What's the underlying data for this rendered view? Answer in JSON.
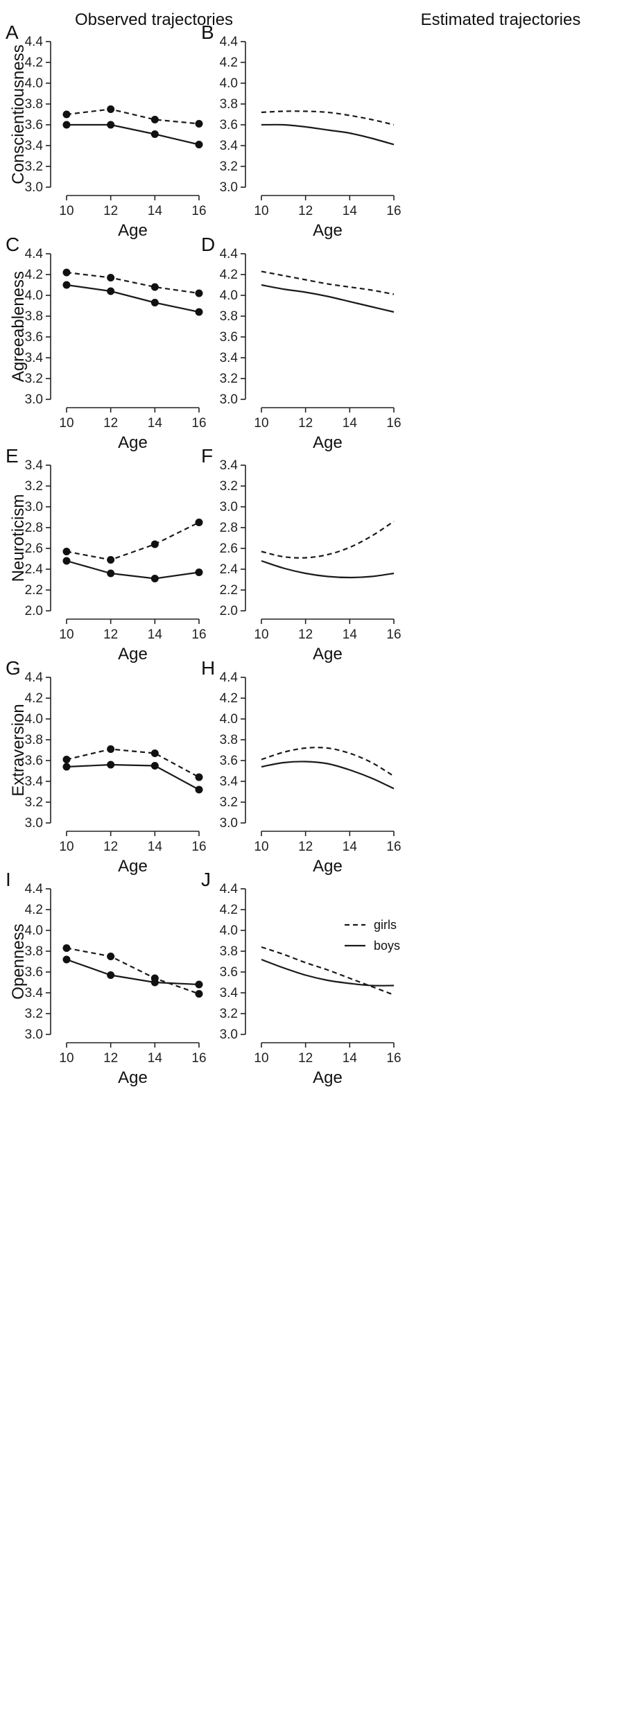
{
  "column_titles": [
    "Observed trajectories",
    "Estimated trajectories"
  ],
  "legend": {
    "girls": "girls",
    "boys": "boys"
  },
  "chart_data": [
    {
      "panel": "A",
      "type": "line",
      "variant": "observed",
      "ylabel": "Conscientiousness",
      "xlabel": "Age",
      "x": [
        10,
        12,
        14,
        16
      ],
      "xticks": [
        10,
        12,
        14,
        16
      ],
      "ylim": [
        3.0,
        4.4
      ],
      "yticks": [
        3.0,
        3.2,
        3.4,
        3.6,
        3.8,
        4.0,
        4.2,
        4.4
      ],
      "series": [
        {
          "name": "girls",
          "style": "dashed",
          "values": [
            3.7,
            3.75,
            3.65,
            3.61
          ]
        },
        {
          "name": "boys",
          "style": "solid",
          "values": [
            3.6,
            3.6,
            3.51,
            3.41
          ]
        }
      ]
    },
    {
      "panel": "B",
      "type": "line",
      "variant": "estimated",
      "ylabel": "",
      "xlabel": "Age",
      "x": [
        10,
        11,
        12,
        13,
        14,
        15,
        16
      ],
      "xticks": [
        10,
        12,
        14,
        16
      ],
      "ylim": [
        3.0,
        4.4
      ],
      "yticks": [
        3.0,
        3.2,
        3.4,
        3.6,
        3.8,
        4.0,
        4.2,
        4.4
      ],
      "series": [
        {
          "name": "girls",
          "style": "dashed",
          "values": [
            3.72,
            3.73,
            3.73,
            3.72,
            3.69,
            3.65,
            3.6
          ]
        },
        {
          "name": "boys",
          "style": "solid",
          "values": [
            3.6,
            3.6,
            3.58,
            3.55,
            3.52,
            3.47,
            3.41
          ]
        }
      ]
    },
    {
      "panel": "C",
      "type": "line",
      "variant": "observed",
      "ylabel": "Agreeableness",
      "xlabel": "Age",
      "x": [
        10,
        12,
        14,
        16
      ],
      "xticks": [
        10,
        12,
        14,
        16
      ],
      "ylim": [
        3.0,
        4.4
      ],
      "yticks": [
        3.0,
        3.2,
        3.4,
        3.6,
        3.8,
        4.0,
        4.2,
        4.4
      ],
      "series": [
        {
          "name": "girls",
          "style": "dashed",
          "values": [
            4.22,
            4.17,
            4.08,
            4.02
          ]
        },
        {
          "name": "boys",
          "style": "solid",
          "values": [
            4.1,
            4.04,
            3.93,
            3.84
          ]
        }
      ]
    },
    {
      "panel": "D",
      "type": "line",
      "variant": "estimated",
      "ylabel": "",
      "xlabel": "Age",
      "x": [
        10,
        11,
        12,
        13,
        14,
        15,
        16
      ],
      "xticks": [
        10,
        12,
        14,
        16
      ],
      "ylim": [
        3.0,
        4.4
      ],
      "yticks": [
        3.0,
        3.2,
        3.4,
        3.6,
        3.8,
        4.0,
        4.2,
        4.4
      ],
      "series": [
        {
          "name": "girls",
          "style": "dashed",
          "values": [
            4.23,
            4.19,
            4.15,
            4.11,
            4.08,
            4.05,
            4.01
          ]
        },
        {
          "name": "boys",
          "style": "solid",
          "values": [
            4.1,
            4.06,
            4.03,
            3.99,
            3.94,
            3.89,
            3.84
          ]
        }
      ]
    },
    {
      "panel": "E",
      "type": "line",
      "variant": "observed",
      "ylabel": "Neuroticism",
      "xlabel": "Age",
      "x": [
        10,
        12,
        14,
        16
      ],
      "xticks": [
        10,
        12,
        14,
        16
      ],
      "ylim": [
        2.0,
        3.4
      ],
      "yticks": [
        2.0,
        2.2,
        2.4,
        2.6,
        2.8,
        3.0,
        3.2,
        3.4
      ],
      "series": [
        {
          "name": "girls",
          "style": "dashed",
          "values": [
            2.57,
            2.49,
            2.64,
            2.85
          ]
        },
        {
          "name": "boys",
          "style": "solid",
          "values": [
            2.48,
            2.36,
            2.31,
            2.37
          ]
        }
      ]
    },
    {
      "panel": "F",
      "type": "line",
      "variant": "estimated",
      "ylabel": "",
      "xlabel": "Age",
      "x": [
        10,
        11,
        12,
        13,
        14,
        15,
        16
      ],
      "xticks": [
        10,
        12,
        14,
        16
      ],
      "ylim": [
        2.0,
        3.4
      ],
      "yticks": [
        2.0,
        2.2,
        2.4,
        2.6,
        2.8,
        3.0,
        3.2,
        3.4
      ],
      "series": [
        {
          "name": "girls",
          "style": "dashed",
          "values": [
            2.57,
            2.52,
            2.51,
            2.54,
            2.61,
            2.72,
            2.86
          ]
        },
        {
          "name": "boys",
          "style": "solid",
          "values": [
            2.48,
            2.41,
            2.36,
            2.33,
            2.32,
            2.33,
            2.36
          ]
        }
      ]
    },
    {
      "panel": "G",
      "type": "line",
      "variant": "observed",
      "ylabel": "Extraversion",
      "xlabel": "Age",
      "x": [
        10,
        12,
        14,
        16
      ],
      "xticks": [
        10,
        12,
        14,
        16
      ],
      "ylim": [
        3.0,
        4.4
      ],
      "yticks": [
        3.0,
        3.2,
        3.4,
        3.6,
        3.8,
        4.0,
        4.2,
        4.4
      ],
      "series": [
        {
          "name": "girls",
          "style": "dashed",
          "values": [
            3.61,
            3.71,
            3.67,
            3.44
          ]
        },
        {
          "name": "boys",
          "style": "solid",
          "values": [
            3.54,
            3.56,
            3.55,
            3.32
          ]
        }
      ]
    },
    {
      "panel": "H",
      "type": "line",
      "variant": "estimated",
      "ylabel": "",
      "xlabel": "Age",
      "x": [
        10,
        11,
        12,
        13,
        14,
        15,
        16
      ],
      "xticks": [
        10,
        12,
        14,
        16
      ],
      "ylim": [
        3.0,
        4.4
      ],
      "yticks": [
        3.0,
        3.2,
        3.4,
        3.6,
        3.8,
        4.0,
        4.2,
        4.4
      ],
      "series": [
        {
          "name": "girls",
          "style": "dashed",
          "values": [
            3.61,
            3.68,
            3.72,
            3.72,
            3.67,
            3.58,
            3.45
          ]
        },
        {
          "name": "boys",
          "style": "solid",
          "values": [
            3.54,
            3.58,
            3.59,
            3.57,
            3.51,
            3.43,
            3.33
          ]
        }
      ]
    },
    {
      "panel": "I",
      "type": "line",
      "variant": "observed",
      "ylabel": "Openness",
      "xlabel": "Age",
      "x": [
        10,
        12,
        14,
        16
      ],
      "xticks": [
        10,
        12,
        14,
        16
      ],
      "ylim": [
        3.0,
        4.4
      ],
      "yticks": [
        3.0,
        3.2,
        3.4,
        3.6,
        3.8,
        4.0,
        4.2,
        4.4
      ],
      "series": [
        {
          "name": "girls",
          "style": "dashed",
          "values": [
            3.83,
            3.75,
            3.54,
            3.39
          ]
        },
        {
          "name": "boys",
          "style": "solid",
          "values": [
            3.72,
            3.57,
            3.5,
            3.48
          ]
        }
      ]
    },
    {
      "panel": "J",
      "type": "line",
      "variant": "estimated",
      "ylabel": "",
      "xlabel": "Age",
      "legend_position": "top-right",
      "x": [
        10,
        11,
        12,
        13,
        14,
        15,
        16
      ],
      "xticks": [
        10,
        12,
        14,
        16
      ],
      "ylim": [
        3.0,
        4.4
      ],
      "yticks": [
        3.0,
        3.2,
        3.4,
        3.6,
        3.8,
        4.0,
        4.2,
        4.4
      ],
      "series": [
        {
          "name": "girls",
          "style": "dashed",
          "values": [
            3.84,
            3.77,
            3.69,
            3.62,
            3.54,
            3.46,
            3.38
          ]
        },
        {
          "name": "boys",
          "style": "solid",
          "values": [
            3.72,
            3.64,
            3.57,
            3.52,
            3.49,
            3.47,
            3.47
          ]
        }
      ]
    }
  ]
}
